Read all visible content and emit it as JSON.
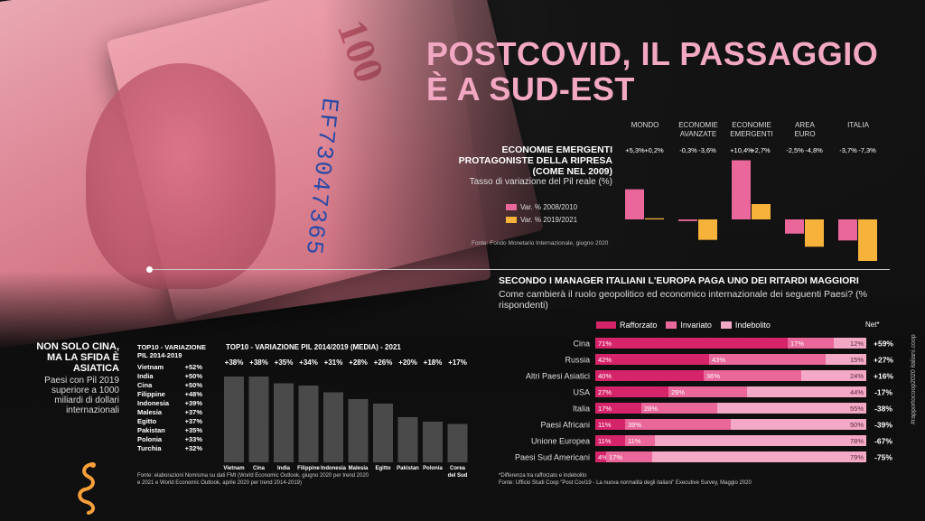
{
  "title_line1": "POSTCOVID, IL PASSAGGIO",
  "title_line2": "È A SUD-EST",
  "colors": {
    "pink_title": "#f2a7c3",
    "pink_2010": "#e9679a",
    "orange_2021": "#f7b23b",
    "rafforzato": "#d6246b",
    "invariato": "#e9679a",
    "indebolito": "#f3a8c6",
    "bar_gray": "#4a4a4a"
  },
  "chart_data": [
    {
      "type": "bar",
      "title": "ECONOMIE EMERGENTI PROTAGONISTE DELLA RIPRESA (COME NEL 2009)",
      "subtitle": "Tasso di variazione del Pil reale (%)",
      "categories": [
        "MONDO",
        "ECONOMIE AVANZATE",
        "ECONOMIE EMERGENTI",
        "AREA EURO",
        "ITALIA"
      ],
      "series": [
        {
          "name": "Var. % 2008/2010",
          "values": [
            5.3,
            -0.3,
            10.4,
            -2.5,
            -3.7
          ]
        },
        {
          "name": "Var. % 2019/2021",
          "values": [
            0.2,
            -3.6,
            2.7,
            -4.8,
            -7.3
          ]
        }
      ],
      "value_labels": [
        [
          "+5,3%",
          "+0,2%"
        ],
        [
          "-0,3%",
          "-3,6%"
        ],
        [
          "+10,4%",
          "+2,7%"
        ],
        [
          "-2,5%",
          "-4,8%"
        ],
        [
          "-3,7%",
          "-7,3%"
        ]
      ],
      "source": "Fonte: Fondo Monetario Internazionale, giugno 2020"
    },
    {
      "type": "bar",
      "title": "TOP10 - VARIAZIONE PIL 2014/2019 (MEDIA) - 2021",
      "categories": [
        "Vietnam",
        "Cina",
        "India",
        "Filippine",
        "Indonesia",
        "Malesia",
        "Egitto",
        "Pakistan",
        "Polonia",
        "Corea del Sud"
      ],
      "values": [
        38,
        38,
        35,
        34,
        31,
        28,
        26,
        20,
        18,
        17
      ],
      "value_labels": [
        "+38%",
        "+38%",
        "+35%",
        "+34%",
        "+31%",
        "+28%",
        "+26%",
        "+20%",
        "+18%",
        "+17%"
      ]
    },
    {
      "type": "table",
      "title": "TOP10 - VARIAZIONE PIL 2014-2019",
      "rows": [
        [
          "Vietnam",
          "+52%"
        ],
        [
          "India",
          "+50%"
        ],
        [
          "Cina",
          "+50%"
        ],
        [
          "Filippine",
          "+48%"
        ],
        [
          "Indonesia",
          "+39%"
        ],
        [
          "Malesia",
          "+37%"
        ],
        [
          "Egitto",
          "+37%"
        ],
        [
          "Pakistan",
          "+35%"
        ],
        [
          "Polonia",
          "+33%"
        ],
        [
          "Turchia",
          "+32%"
        ]
      ]
    },
    {
      "type": "bar",
      "stacked": true,
      "title": "SECONDO I MANAGER ITALIANI L'EUROPA PAGA UNO DEI RITARDI MAGGIORI",
      "subtitle": "Come cambierà il ruolo geopolitico ed economico internazionale dei seguenti Paesi? (% rispondenti)",
      "categories": [
        "Cina",
        "Russia",
        "Altri Paesi Asiatici",
        "USA",
        "Italia",
        "Paesi Africani",
        "Unione Europea",
        "Paesi Sud Americani"
      ],
      "series": [
        {
          "name": "Rafforzato",
          "values": [
            71,
            42,
            40,
            27,
            17,
            11,
            11,
            4
          ]
        },
        {
          "name": "Invariato",
          "values": [
            17,
            43,
            36,
            29,
            28,
            39,
            11,
            17
          ]
        },
        {
          "name": "Indebolito",
          "values": [
            12,
            15,
            24,
            44,
            55,
            50,
            78,
            79
          ]
        }
      ],
      "net_header": "Net*",
      "net": [
        "+59%",
        "+27%",
        "+16%",
        "-17%",
        "-38%",
        "-39%",
        "-67%",
        "-75%"
      ]
    }
  ],
  "left_block": {
    "head": [
      "NON SOLO CINA,",
      "MA LA SFIDA È",
      "ASIATICA"
    ],
    "sub": [
      "Paesi con Pil 2019",
      "superiore a 1000",
      "miliardi di dollari",
      "internazionali"
    ]
  },
  "top10_list_title": [
    "TOP10 - VARIAZIONE",
    "PIL 2014-2019"
  ],
  "source_2": [
    "Fonte: elaborazioni Nomisma su dati FMI  (World Economic Outlook, giugno 2020 per trend 2020",
    "e 2021 e World Economic Outlook, aprile 2020 per trend 2014-2019)"
  ],
  "source_3": [
    "*Differenza tra rafforzato e indebolito",
    "Fonte: Ufficio Studi Coop \"Post Covi19 - La nuova normalità degli italiani\" Executive Survey, Maggio 2020"
  ],
  "side_credit": "#rapportocoop2020  italiani.coop"
}
